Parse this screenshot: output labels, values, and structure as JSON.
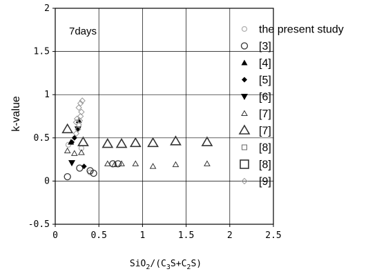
{
  "chart_data": {
    "type": "scatter",
    "title": "",
    "annotation": "7days",
    "xlabel": "SiO",
    "xlabel_sub1": "2",
    "xlabel_mid": "/(C",
    "xlabel_sub2": "3",
    "xlabel_mid2": "S+C",
    "xlabel_sub3": "2",
    "xlabel_end": "S)",
    "ylabel": "k-value",
    "xlim": [
      0,
      2.5
    ],
    "ylim": [
      -0.5,
      2
    ],
    "xticks": [
      0,
      0.5,
      1,
      1.5,
      2,
      2.5
    ],
    "yticks": [
      -0.5,
      0,
      0.5,
      1,
      1.5,
      2
    ],
    "xtick_labels": [
      "0",
      "0.5",
      "1",
      "1.5",
      "2",
      "2.5"
    ],
    "ytick_labels": [
      "-0.5",
      "0",
      "0.5",
      "1",
      "1.5",
      "2"
    ],
    "grid": true,
    "legend_position": "right",
    "series": [
      {
        "name": "the present study",
        "marker": "circle-open-small",
        "color": "#b0b0b0",
        "x": [
          0.15,
          0.3,
          0.4
        ],
        "y": [
          0.42,
          0.38,
          0.1
        ]
      },
      {
        "name": "[3]",
        "marker": "circle-open",
        "color": "#333333",
        "x": [
          0.14,
          0.28,
          0.66,
          0.72,
          0.4,
          0.44
        ],
        "y": [
          0.05,
          0.15,
          0.2,
          0.2,
          0.12,
          0.09
        ]
      },
      {
        "name": "[4]",
        "marker": "triangle-filled-small",
        "color": "#000000",
        "x": [
          0.18,
          0.27
        ],
        "y": [
          0.45,
          0.7
        ]
      },
      {
        "name": "[5]",
        "marker": "diamond-filled",
        "color": "#000000",
        "x": [
          0.19,
          0.33,
          0.22
        ],
        "y": [
          0.45,
          0.17,
          0.5
        ]
      },
      {
        "name": "[6]",
        "marker": "triangle-down-filled",
        "color": "#000000",
        "x": [
          0.19,
          0.26
        ],
        "y": [
          0.21,
          0.6
        ]
      },
      {
        "name": "[7]",
        "marker": "triangle-open-small",
        "color": "#333333",
        "x": [
          0.14,
          0.22,
          0.3,
          0.6,
          0.68,
          0.76,
          0.92,
          1.12,
          1.38,
          1.74
        ],
        "y": [
          0.35,
          0.32,
          0.33,
          0.2,
          0.19,
          0.2,
          0.2,
          0.17,
          0.19,
          0.2
        ]
      },
      {
        "name": "[7]",
        "marker": "triangle-open-large",
        "color": "#333333",
        "x": [
          0.14,
          0.32,
          0.6,
          0.76,
          0.92,
          1.12,
          1.38,
          1.74
        ],
        "y": [
          0.6,
          0.45,
          0.43,
          0.43,
          0.44,
          0.44,
          0.46,
          0.45
        ]
      },
      {
        "name": "[8]",
        "marker": "square-open-small",
        "color": "#666666",
        "x": [],
        "y": []
      },
      {
        "name": "[8]",
        "marker": "square-open-large",
        "color": "#333333",
        "x": [],
        "y": []
      },
      {
        "name": "[9]",
        "marker": "diamond-open",
        "color": "#9a9a9a",
        "x": [
          0.24,
          0.26,
          0.27,
          0.28,
          0.29,
          0.3,
          0.25,
          0.27,
          0.29,
          0.31,
          0.24
        ],
        "y": [
          0.55,
          0.6,
          0.65,
          0.7,
          0.75,
          0.8,
          0.72,
          0.85,
          0.9,
          0.93,
          0.68
        ]
      }
    ]
  }
}
